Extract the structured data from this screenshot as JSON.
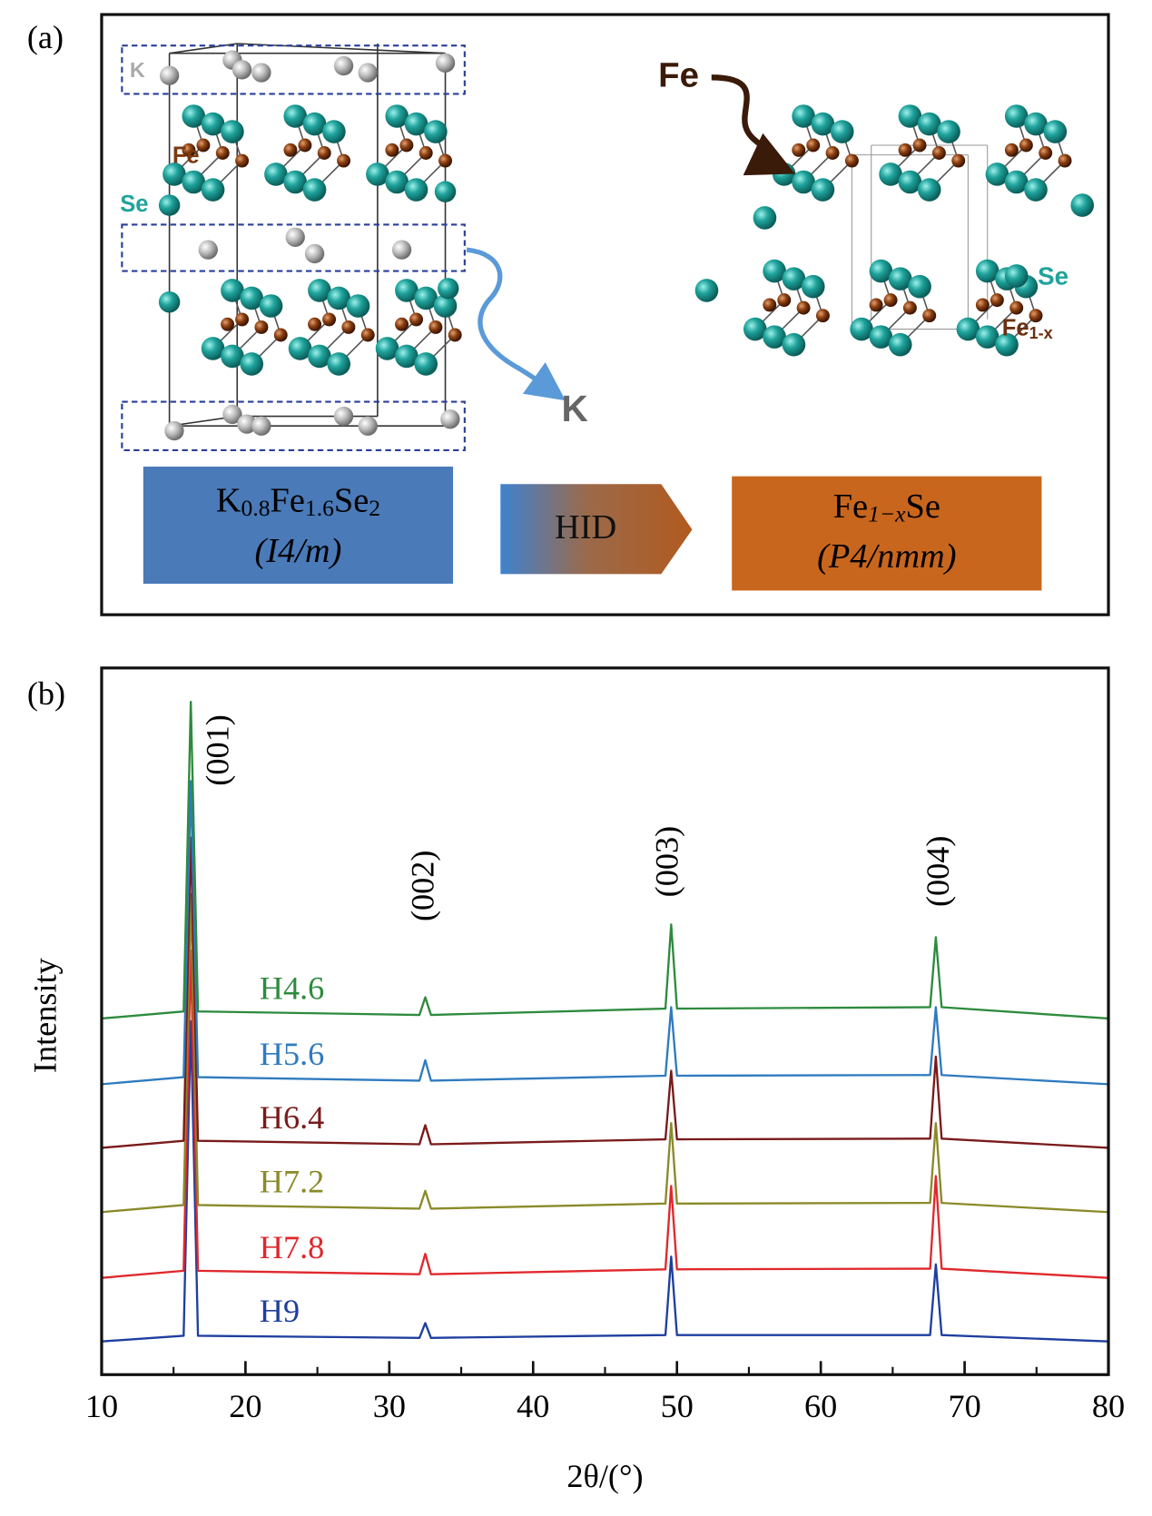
{
  "panel_a": {
    "label": "(a)",
    "k_top": "K",
    "fe_left": "Fe",
    "se_left": "Se",
    "k_out": "K",
    "fe_right": "Fe",
    "se_right": "Se",
    "fe1x": [
      "Fe",
      "1-x"
    ],
    "left_box": {
      "formula": [
        "K",
        "0.8",
        "Fe",
        "1.6",
        "Se",
        "2"
      ],
      "group": "(I4/m)"
    },
    "arrow": "HID",
    "right_box": {
      "formula": [
        "Fe",
        "1−x",
        "Se"
      ],
      "group": "(P4/nmm)"
    }
  },
  "chart_data": {
    "type": "line",
    "panel_label": "(b)",
    "xlabel": "2θ/(°)",
    "ylabel": "Intensity",
    "xlim": [
      10,
      80
    ],
    "xticks": [
      10,
      20,
      30,
      40,
      50,
      60,
      70,
      80
    ],
    "xminorticks": [
      15,
      25,
      35,
      45,
      55,
      65,
      75
    ],
    "ylim": [
      0,
      100
    ],
    "annotations": [
      "(001)",
      "(002)",
      "(003)",
      "(004)"
    ],
    "x": [
      10,
      15.7,
      16.2,
      16.7,
      32.1,
      32.5,
      32.9,
      49.2,
      49.6,
      50.0,
      67.6,
      68.0,
      68.4,
      80
    ],
    "series": [
      {
        "name": "H9",
        "color": "#1f3f9f",
        "values": [
          4.7,
          5.5,
          50,
          5.5,
          5.2,
          7.3,
          5.2,
          5.6,
          16.7,
          5.6,
          5.6,
          15.6,
          5.6,
          4.7
        ]
      },
      {
        "name": "H7.8",
        "color": "#e0282d",
        "values": [
          13.7,
          14.7,
          60,
          14.7,
          14.2,
          17.1,
          14.2,
          14.9,
          26.7,
          14.9,
          15.0,
          28.1,
          15.0,
          13.7
        ]
      },
      {
        "name": "H7.2",
        "color": "#8a8a2a",
        "values": [
          23.0,
          24.0,
          68,
          24.0,
          23.5,
          26.0,
          23.5,
          24.2,
          35.6,
          24.2,
          24.3,
          35.6,
          24.3,
          23.0
        ]
      },
      {
        "name": "H6.4",
        "color": "#7a1a1a",
        "values": [
          32.1,
          33.1,
          76,
          33.1,
          32.6,
          35.3,
          32.6,
          33.3,
          43.0,
          33.3,
          33.4,
          45.0,
          33.4,
          32.1
        ]
      },
      {
        "name": "H5.6",
        "color": "#2f7bbf",
        "values": [
          41.1,
          42.1,
          84,
          42.1,
          41.6,
          44.5,
          41.6,
          42.3,
          52.0,
          42.3,
          42.4,
          52.0,
          42.4,
          41.1
        ]
      },
      {
        "name": "H4.6",
        "color": "#2e8b3e",
        "values": [
          50.4,
          51.4,
          95.2,
          51.4,
          50.9,
          53.4,
          50.9,
          51.8,
          63.7,
          51.8,
          52.0,
          61.9,
          52.0,
          50.4
        ]
      }
    ]
  }
}
